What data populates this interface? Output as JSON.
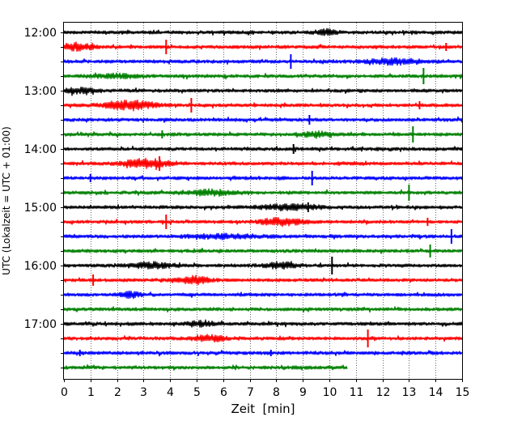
{
  "chart_data": {
    "type": "line",
    "title": "",
    "xlabel": "Zeit  [min]",
    "ylabel": "UTC (Lokalzeit = UTC + 01:00)",
    "xlim": [
      0,
      15
    ],
    "x_ticks": [
      "0",
      "1",
      "2",
      "3",
      "4",
      "5",
      "6",
      "7",
      "8",
      "9",
      "10",
      "11",
      "12",
      "13",
      "14",
      "15"
    ],
    "y_tick_labels": [
      "12:00",
      "13:00",
      "14:00",
      "15:00",
      "16:00",
      "17:00"
    ],
    "grid": "vertical dotted",
    "trace_interval_min": 15,
    "trace_colors": [
      "#000000",
      "#ff0000",
      "#0000ff",
      "#008000"
    ],
    "traces": [
      {
        "start": "12:00",
        "color": "#000000",
        "end_min": 15,
        "spikes": [],
        "bursts": [
          [
            9.9,
            0.4,
            3
          ]
        ]
      },
      {
        "start": "12:15",
        "color": "#ff0000",
        "end_min": 15,
        "spikes": [
          [
            3.85,
            9
          ],
          [
            14.4,
            5
          ]
        ],
        "bursts": [
          [
            0.5,
            0.6,
            4
          ]
        ]
      },
      {
        "start": "12:30",
        "color": "#0000ff",
        "end_min": 15,
        "spikes": [
          [
            8.55,
            9
          ]
        ],
        "bursts": [
          [
            12.5,
            1.0,
            3
          ]
        ]
      },
      {
        "start": "12:45",
        "color": "#008000",
        "end_min": 15,
        "spikes": [
          [
            13.55,
            10
          ]
        ],
        "bursts": [
          [
            2.0,
            0.8,
            2
          ]
        ]
      },
      {
        "start": "13:00",
        "color": "#000000",
        "end_min": 15,
        "spikes": [],
        "bursts": [
          [
            0.5,
            0.6,
            3
          ]
        ]
      },
      {
        "start": "13:15",
        "color": "#ff0000",
        "end_min": 15,
        "spikes": [
          [
            4.8,
            9
          ],
          [
            13.4,
            5
          ]
        ],
        "bursts": [
          [
            2.5,
            0.9,
            5
          ]
        ]
      },
      {
        "start": "13:30",
        "color": "#0000ff",
        "end_min": 15,
        "spikes": [
          [
            9.25,
            6
          ]
        ],
        "bursts": []
      },
      {
        "start": "13:45",
        "color": "#008000",
        "end_min": 15,
        "spikes": [
          [
            13.15,
            10
          ],
          [
            3.7,
            5
          ]
        ],
        "bursts": [
          [
            9.5,
            0.6,
            3
          ]
        ]
      },
      {
        "start": "14:00",
        "color": "#000000",
        "end_min": 15,
        "spikes": [
          [
            8.65,
            6
          ]
        ],
        "bursts": []
      },
      {
        "start": "14:15",
        "color": "#ff0000",
        "end_min": 15,
        "spikes": [
          [
            3.6,
            9
          ]
        ],
        "bursts": [
          [
            3.1,
            0.8,
            5
          ]
        ]
      },
      {
        "start": "14:30",
        "color": "#0000ff",
        "end_min": 15,
        "spikes": [
          [
            9.35,
            9
          ],
          [
            1.0,
            5
          ]
        ],
        "bursts": []
      },
      {
        "start": "14:45",
        "color": "#008000",
        "end_min": 15,
        "spikes": [
          [
            13.0,
            10
          ]
        ],
        "bursts": [
          [
            5.5,
            0.8,
            3
          ]
        ]
      },
      {
        "start": "15:00",
        "color": "#000000",
        "end_min": 15,
        "spikes": [
          [
            9.2,
            6
          ]
        ],
        "bursts": [
          [
            8.5,
            1.0,
            3
          ]
        ]
      },
      {
        "start": "15:15",
        "color": "#ff0000",
        "end_min": 15,
        "spikes": [
          [
            3.85,
            9
          ],
          [
            13.7,
            5
          ]
        ],
        "bursts": [
          [
            8.2,
            0.8,
            4
          ]
        ]
      },
      {
        "start": "15:30",
        "color": "#0000ff",
        "end_min": 15,
        "spikes": [
          [
            14.6,
            9
          ]
        ],
        "bursts": [
          [
            6.0,
            1.5,
            2
          ]
        ]
      },
      {
        "start": "15:45",
        "color": "#008000",
        "end_min": 15,
        "spikes": [
          [
            13.8,
            8
          ]
        ],
        "bursts": []
      },
      {
        "start": "16:00",
        "color": "#000000",
        "end_min": 15,
        "spikes": [
          [
            10.1,
            11
          ]
        ],
        "bursts": [
          [
            3.3,
            0.8,
            3
          ],
          [
            8.2,
            0.6,
            3
          ]
        ]
      },
      {
        "start": "16:15",
        "color": "#ff0000",
        "end_min": 15,
        "spikes": [
          [
            1.1,
            7
          ]
        ],
        "bursts": [
          [
            4.9,
            0.6,
            4
          ]
        ]
      },
      {
        "start": "16:30",
        "color": "#0000ff",
        "end_min": 15,
        "spikes": [],
        "bursts": [
          [
            2.5,
            0.4,
            3
          ]
        ]
      },
      {
        "start": "16:45",
        "color": "#008000",
        "end_min": 15,
        "spikes": [],
        "bursts": []
      },
      {
        "start": "17:00",
        "color": "#000000",
        "end_min": 15,
        "spikes": [],
        "bursts": [
          [
            5.2,
            0.5,
            3
          ]
        ]
      },
      {
        "start": "17:15",
        "color": "#ff0000",
        "end_min": 15,
        "spikes": [
          [
            11.45,
            11
          ]
        ],
        "bursts": [
          [
            5.5,
            0.6,
            3
          ]
        ]
      },
      {
        "start": "17:30",
        "color": "#0000ff",
        "end_min": 15,
        "spikes": [
          [
            0.6,
            4
          ],
          [
            7.8,
            4
          ]
        ],
        "bursts": []
      },
      {
        "start": "17:45",
        "color": "#008000",
        "end_min": 10.7,
        "spikes": [],
        "bursts": []
      }
    ]
  }
}
